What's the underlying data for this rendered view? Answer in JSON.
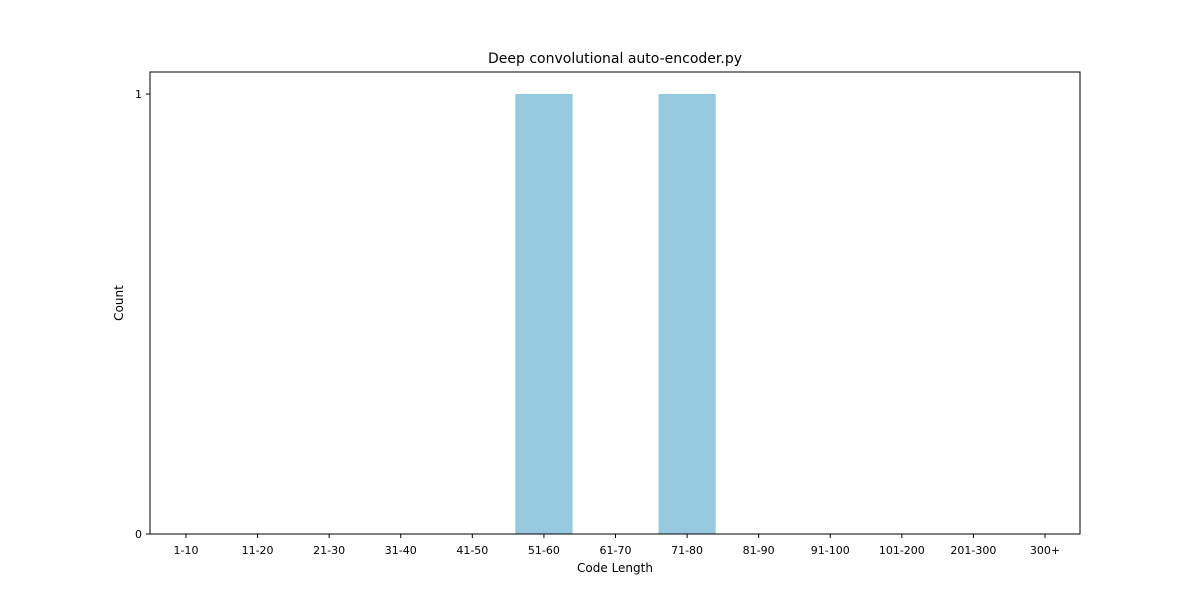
{
  "chart_data": {
    "type": "bar",
    "title": "Deep convolutional auto-encoder.py",
    "xlabel": "Code Length",
    "ylabel": "Count",
    "categories": [
      "1-10",
      "11-20",
      "21-30",
      "31-40",
      "41-50",
      "51-60",
      "61-70",
      "71-80",
      "81-90",
      "91-100",
      "101-200",
      "201-300",
      "300+"
    ],
    "values": [
      0,
      0,
      0,
      0,
      0,
      1,
      0,
      1,
      0,
      0,
      0,
      0,
      0
    ],
    "ylim": [
      0,
      1.05
    ],
    "yticks": [
      0,
      1
    ],
    "bar_color": "#97c9de",
    "grid": false
  }
}
